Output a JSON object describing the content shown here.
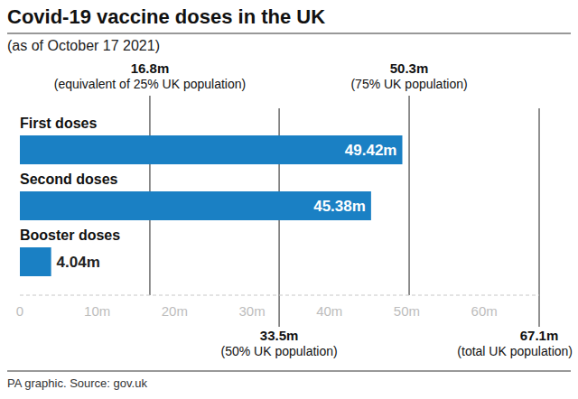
{
  "chart_data": {
    "type": "bar",
    "orientation": "horizontal",
    "title": "Covid-19 vaccine doses in the UK",
    "subtitle": "(as of October 17 2021)",
    "source": "PA graphic. Source: gov.uk",
    "categories": [
      "First doses",
      "Second doses",
      "Booster doses"
    ],
    "values": [
      49.42,
      45.38,
      4.04
    ],
    "value_labels": [
      "49.42m",
      "45.38m",
      "4.04m"
    ],
    "data_labels": true,
    "color": "#1a80c4",
    "grid": false,
    "xlim": [
      0,
      67.1
    ],
    "xticks": [
      0,
      {
        "value": 10,
        "label": "10m"
      },
      {
        "value": 20,
        "label": "20m"
      },
      {
        "value": 30,
        "label": "30m"
      },
      {
        "value": 40,
        "label": "40m"
      },
      {
        "value": 50,
        "label": "50m"
      },
      {
        "value": 60,
        "label": "60m"
      }
    ],
    "annotations": [
      {
        "value": 16.8,
        "label": "16.8m",
        "text": "(equivalent of 25% UK population)"
      },
      {
        "value": 33.5,
        "label": "33.5m",
        "text": "(50% UK population)"
      },
      {
        "value": 50.3,
        "label": "50.3m",
        "text": "(75% UK population)"
      },
      {
        "value": 67.1,
        "label": "67.1m",
        "text": "(total UK population)"
      }
    ]
  }
}
